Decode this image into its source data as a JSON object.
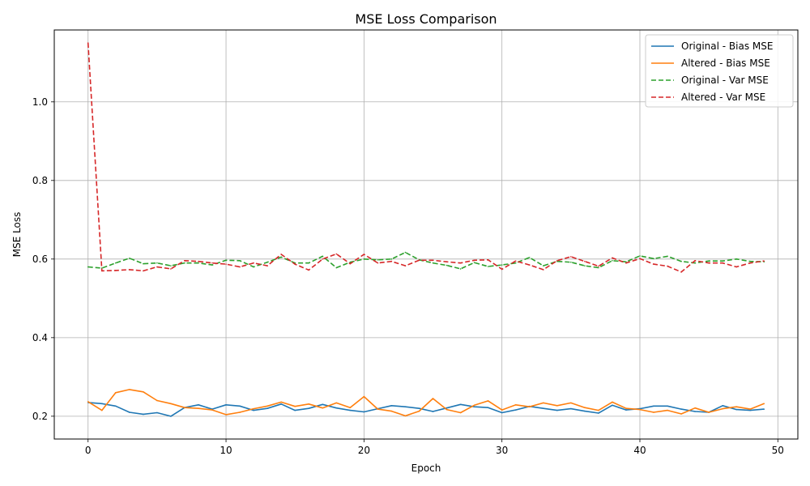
{
  "chart_data": {
    "type": "line",
    "title": "MSE Loss Comparison",
    "xlabel": "Epoch",
    "ylabel": "MSE Loss",
    "xlim": [
      -2.45,
      51.45
    ],
    "ylim": [
      0.142,
      1.183
    ],
    "x_ticks": [
      0,
      10,
      20,
      30,
      40,
      50
    ],
    "x_tick_labels": [
      "0",
      "10",
      "20",
      "30",
      "40",
      "50"
    ],
    "y_ticks": [
      0.2,
      0.4,
      0.6,
      0.8,
      1.0
    ],
    "y_tick_labels": [
      "0.2",
      "0.4",
      "0.6",
      "0.8",
      "1.0"
    ],
    "grid": true,
    "legend_position": "top-right",
    "x": [
      0,
      1,
      2,
      3,
      4,
      5,
      6,
      7,
      8,
      9,
      10,
      11,
      12,
      13,
      14,
      15,
      16,
      17,
      18,
      19,
      20,
      21,
      22,
      23,
      24,
      25,
      26,
      27,
      28,
      29,
      30,
      31,
      32,
      33,
      34,
      35,
      36,
      37,
      38,
      39,
      40,
      41,
      42,
      43,
      44,
      45,
      46,
      47,
      48,
      49
    ],
    "series": [
      {
        "name": "Original - Bias MSE",
        "color": "#1f77b4",
        "style": "solid",
        "values": [
          0.235,
          0.232,
          0.226,
          0.21,
          0.205,
          0.209,
          0.2,
          0.222,
          0.229,
          0.218,
          0.229,
          0.226,
          0.215,
          0.22,
          0.231,
          0.215,
          0.22,
          0.23,
          0.221,
          0.215,
          0.211,
          0.219,
          0.227,
          0.224,
          0.22,
          0.212,
          0.221,
          0.23,
          0.224,
          0.222,
          0.209,
          0.216,
          0.225,
          0.22,
          0.215,
          0.219,
          0.213,
          0.208,
          0.228,
          0.216,
          0.219,
          0.226,
          0.226,
          0.218,
          0.212,
          0.21,
          0.227,
          0.217,
          0.215,
          0.218
        ]
      },
      {
        "name": "Altered - Bias MSE",
        "color": "#ff7f0e",
        "style": "solid",
        "values": [
          0.237,
          0.215,
          0.26,
          0.268,
          0.262,
          0.24,
          0.232,
          0.222,
          0.22,
          0.216,
          0.204,
          0.21,
          0.219,
          0.226,
          0.236,
          0.225,
          0.231,
          0.221,
          0.234,
          0.222,
          0.25,
          0.218,
          0.213,
          0.201,
          0.213,
          0.245,
          0.217,
          0.209,
          0.228,
          0.239,
          0.216,
          0.229,
          0.224,
          0.234,
          0.227,
          0.234,
          0.222,
          0.215,
          0.236,
          0.22,
          0.217,
          0.21,
          0.215,
          0.206,
          0.221,
          0.21,
          0.219,
          0.224,
          0.218,
          0.232
        ]
      },
      {
        "name": "Original - Var MSE",
        "color": "#2ca02c",
        "style": "dashed",
        "values": [
          0.58,
          0.577,
          0.59,
          0.602,
          0.588,
          0.59,
          0.583,
          0.59,
          0.59,
          0.585,
          0.597,
          0.596,
          0.58,
          0.592,
          0.605,
          0.59,
          0.59,
          0.607,
          0.578,
          0.592,
          0.6,
          0.598,
          0.6,
          0.617,
          0.598,
          0.59,
          0.584,
          0.575,
          0.591,
          0.581,
          0.585,
          0.59,
          0.604,
          0.583,
          0.594,
          0.592,
          0.583,
          0.578,
          0.596,
          0.593,
          0.608,
          0.601,
          0.607,
          0.594,
          0.59,
          0.595,
          0.595,
          0.6,
          0.594,
          0.593
        ]
      },
      {
        "name": "Altered - Var MSE",
        "color": "#d62728",
        "style": "dashed",
        "values": [
          1.15,
          0.57,
          0.571,
          0.573,
          0.57,
          0.58,
          0.575,
          0.596,
          0.594,
          0.59,
          0.587,
          0.58,
          0.59,
          0.583,
          0.612,
          0.587,
          0.572,
          0.6,
          0.613,
          0.588,
          0.612,
          0.59,
          0.594,
          0.583,
          0.597,
          0.597,
          0.593,
          0.59,
          0.597,
          0.598,
          0.574,
          0.595,
          0.585,
          0.573,
          0.596,
          0.606,
          0.594,
          0.582,
          0.603,
          0.59,
          0.601,
          0.587,
          0.582,
          0.567,
          0.596,
          0.59,
          0.59,
          0.58,
          0.59,
          0.595
        ]
      }
    ]
  }
}
